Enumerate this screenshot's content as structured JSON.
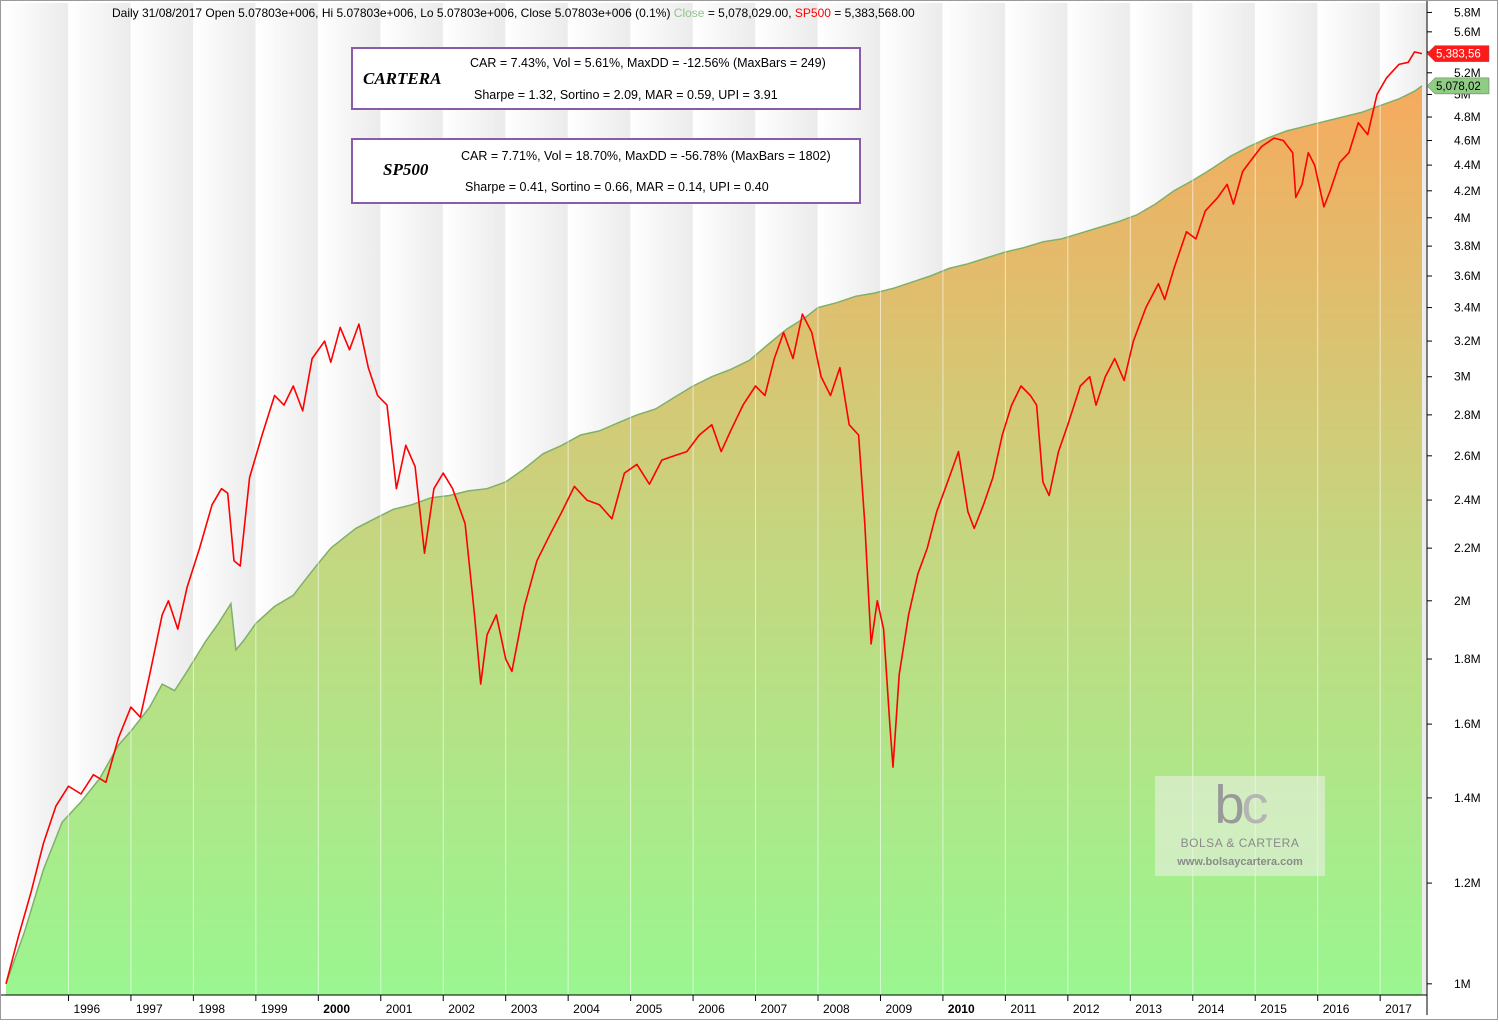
{
  "header": {
    "prefix": "Daily 31/08/2017 Open 5.07803e+006, Hi 5.07803e+006, Lo 5.07803e+006, Close 5.07803e+006 (0.1%)",
    "close_label": "Close",
    "close_value": " = 5,078,029.00, ",
    "sp_label": "SP500",
    "sp_value": " = 5,383,568.00"
  },
  "boxes": {
    "cartera": {
      "name": "CARTERA",
      "line1": "CAR = 7.43%, Vol = 5.61%, MaxDD = -12.56% (MaxBars = 249)",
      "line2": "Sharpe = 1.32, Sortino = 2.09, MAR = 0.59, UPI = 3.91"
    },
    "sp500": {
      "name": "SP500",
      "line1": "CAR = 7.71%, Vol = 18.70%, MaxDD = -56.78% (MaxBars = 1802)",
      "line2": "Sharpe = 0.41, Sortino = 0.66, MAR = 0.14, UPI = 0.40"
    }
  },
  "watermark": {
    "logo_b": "b",
    "logo_c": "c",
    "name": "BOLSA & CARTERA",
    "url": "www.bolsaycartera.com"
  },
  "chart_data": {
    "type": "line",
    "scale": "log",
    "x_unit": "year",
    "ylim": [
      980000,
      5900000
    ],
    "xlim": [
      1995.0,
      2017.75
    ],
    "y_ticks": [
      1000000,
      1200000,
      1400000,
      1600000,
      1800000,
      2000000,
      2200000,
      2400000,
      2600000,
      2800000,
      3000000,
      3200000,
      3400000,
      3600000,
      3800000,
      4000000,
      4200000,
      4400000,
      4600000,
      4800000,
      5000000,
      5200000,
      5400000,
      5600000,
      5800000
    ],
    "y_tick_labels": [
      "1M",
      "1.2M",
      "1.4M",
      "1.6M",
      "1.8M",
      "2M",
      "2.2M",
      "2.4M",
      "2.6M",
      "2.8M",
      "3M",
      "3.2M",
      "3.4M",
      "3.6M",
      "3.8M",
      "4M",
      "4.2M",
      "4.4M",
      "4.6M",
      "4.8M",
      "5M",
      "5.2M",
      "5.4M",
      "5.6M",
      "5.8M"
    ],
    "x_labels": [
      {
        "year": 1996,
        "label": "1996",
        "bold": false
      },
      {
        "year": 1997,
        "label": "1997",
        "bold": false
      },
      {
        "year": 1998,
        "label": "1998",
        "bold": false
      },
      {
        "year": 1999,
        "label": "1999",
        "bold": false
      },
      {
        "year": 2000,
        "label": "2000",
        "bold": true
      },
      {
        "year": 2001,
        "label": "2001",
        "bold": false
      },
      {
        "year": 2002,
        "label": "2002",
        "bold": false
      },
      {
        "year": 2003,
        "label": "2003",
        "bold": false
      },
      {
        "year": 2004,
        "label": "2004",
        "bold": false
      },
      {
        "year": 2005,
        "label": "2005",
        "bold": false
      },
      {
        "year": 2006,
        "label": "2006",
        "bold": false
      },
      {
        "year": 2007,
        "label": "2007",
        "bold": false
      },
      {
        "year": 2008,
        "label": "2008",
        "bold": false
      },
      {
        "year": 2009,
        "label": "2009",
        "bold": false
      },
      {
        "year": 2010,
        "label": "2010",
        "bold": true
      },
      {
        "year": 2011,
        "label": "2011",
        "bold": false
      },
      {
        "year": 2012,
        "label": "2012",
        "bold": false
      },
      {
        "year": 2013,
        "label": "2013",
        "bold": false
      },
      {
        "year": 2014,
        "label": "2014",
        "bold": false
      },
      {
        "year": 2015,
        "label": "2015",
        "bold": false
      },
      {
        "year": 2016,
        "label": "2016",
        "bold": false
      },
      {
        "year": 2017,
        "label": "2017",
        "bold": false
      }
    ],
    "series": [
      {
        "name": "Close",
        "style": "area",
        "color": "#7fb06a",
        "points": [
          [
            1995.0,
            1000000
          ],
          [
            1995.3,
            1100000
          ],
          [
            1995.6,
            1230000
          ],
          [
            1995.9,
            1340000
          ],
          [
            1996.2,
            1390000
          ],
          [
            1996.5,
            1450000
          ],
          [
            1996.8,
            1540000
          ],
          [
            1997.0,
            1580000
          ],
          [
            1997.3,
            1650000
          ],
          [
            1997.5,
            1720000
          ],
          [
            1997.7,
            1700000
          ],
          [
            1997.9,
            1760000
          ],
          [
            1998.2,
            1860000
          ],
          [
            1998.4,
            1920000
          ],
          [
            1998.6,
            1990000
          ],
          [
            1998.68,
            1830000
          ],
          [
            1998.8,
            1860000
          ],
          [
            1999.0,
            1920000
          ],
          [
            1999.3,
            1980000
          ],
          [
            1999.6,
            2020000
          ],
          [
            1999.8,
            2080000
          ],
          [
            2000.0,
            2140000
          ],
          [
            2000.2,
            2200000
          ],
          [
            2000.4,
            2240000
          ],
          [
            2000.6,
            2280000
          ],
          [
            2000.9,
            2320000
          ],
          [
            2001.2,
            2360000
          ],
          [
            2001.5,
            2380000
          ],
          [
            2001.8,
            2410000
          ],
          [
            2002.1,
            2420000
          ],
          [
            2002.4,
            2440000
          ],
          [
            2002.7,
            2450000
          ],
          [
            2003.0,
            2480000
          ],
          [
            2003.3,
            2540000
          ],
          [
            2003.6,
            2610000
          ],
          [
            2003.9,
            2650000
          ],
          [
            2004.2,
            2700000
          ],
          [
            2004.5,
            2720000
          ],
          [
            2004.8,
            2760000
          ],
          [
            2005.1,
            2800000
          ],
          [
            2005.4,
            2830000
          ],
          [
            2005.7,
            2890000
          ],
          [
            2006.0,
            2950000
          ],
          [
            2006.3,
            3000000
          ],
          [
            2006.6,
            3040000
          ],
          [
            2006.9,
            3090000
          ],
          [
            2007.2,
            3180000
          ],
          [
            2007.5,
            3270000
          ],
          [
            2007.8,
            3340000
          ],
          [
            2008.0,
            3400000
          ],
          [
            2008.3,
            3430000
          ],
          [
            2008.6,
            3470000
          ],
          [
            2008.9,
            3490000
          ],
          [
            2009.2,
            3520000
          ],
          [
            2009.5,
            3560000
          ],
          [
            2009.8,
            3600000
          ],
          [
            2010.1,
            3650000
          ],
          [
            2010.4,
            3680000
          ],
          [
            2010.7,
            3720000
          ],
          [
            2011.0,
            3760000
          ],
          [
            2011.3,
            3790000
          ],
          [
            2011.6,
            3830000
          ],
          [
            2011.9,
            3850000
          ],
          [
            2012.2,
            3890000
          ],
          [
            2012.5,
            3930000
          ],
          [
            2012.8,
            3970000
          ],
          [
            2013.1,
            4020000
          ],
          [
            2013.4,
            4100000
          ],
          [
            2013.7,
            4200000
          ],
          [
            2014.0,
            4280000
          ],
          [
            2014.3,
            4370000
          ],
          [
            2014.6,
            4470000
          ],
          [
            2014.9,
            4550000
          ],
          [
            2015.2,
            4620000
          ],
          [
            2015.5,
            4680000
          ],
          [
            2015.8,
            4720000
          ],
          [
            2016.1,
            4760000
          ],
          [
            2016.4,
            4800000
          ],
          [
            2016.7,
            4840000
          ],
          [
            2017.0,
            4900000
          ],
          [
            2017.3,
            4960000
          ],
          [
            2017.55,
            5030000
          ],
          [
            2017.67,
            5078029
          ]
        ]
      },
      {
        "name": "SP500",
        "style": "line",
        "color": "#ff0000",
        "points": [
          [
            1995.0,
            1000000
          ],
          [
            1995.2,
            1090000
          ],
          [
            1995.4,
            1180000
          ],
          [
            1995.6,
            1290000
          ],
          [
            1995.8,
            1380000
          ],
          [
            1996.0,
            1430000
          ],
          [
            1996.2,
            1410000
          ],
          [
            1996.4,
            1460000
          ],
          [
            1996.6,
            1440000
          ],
          [
            1996.8,
            1560000
          ],
          [
            1997.0,
            1650000
          ],
          [
            1997.15,
            1620000
          ],
          [
            1997.3,
            1750000
          ],
          [
            1997.5,
            1950000
          ],
          [
            1997.6,
            2000000
          ],
          [
            1997.75,
            1900000
          ],
          [
            1997.9,
            2050000
          ],
          [
            1998.1,
            2200000
          ],
          [
            1998.3,
            2380000
          ],
          [
            1998.45,
            2450000
          ],
          [
            1998.55,
            2430000
          ],
          [
            1998.65,
            2150000
          ],
          [
            1998.75,
            2130000
          ],
          [
            1998.9,
            2500000
          ],
          [
            1999.1,
            2700000
          ],
          [
            1999.3,
            2900000
          ],
          [
            1999.45,
            2850000
          ],
          [
            1999.6,
            2950000
          ],
          [
            1999.75,
            2820000
          ],
          [
            1999.9,
            3100000
          ],
          [
            2000.1,
            3200000
          ],
          [
            2000.2,
            3080000
          ],
          [
            2000.35,
            3280000
          ],
          [
            2000.5,
            3150000
          ],
          [
            2000.65,
            3300000
          ],
          [
            2000.8,
            3050000
          ],
          [
            2000.95,
            2900000
          ],
          [
            2001.1,
            2850000
          ],
          [
            2001.25,
            2450000
          ],
          [
            2001.4,
            2650000
          ],
          [
            2001.55,
            2550000
          ],
          [
            2001.7,
            2180000
          ],
          [
            2001.85,
            2450000
          ],
          [
            2002.0,
            2520000
          ],
          [
            2002.15,
            2450000
          ],
          [
            2002.35,
            2300000
          ],
          [
            2002.5,
            1950000
          ],
          [
            2002.6,
            1720000
          ],
          [
            2002.7,
            1880000
          ],
          [
            2002.85,
            1950000
          ],
          [
            2003.0,
            1800000
          ],
          [
            2003.1,
            1760000
          ],
          [
            2003.3,
            1980000
          ],
          [
            2003.5,
            2150000
          ],
          [
            2003.7,
            2250000
          ],
          [
            2003.9,
            2350000
          ],
          [
            2004.1,
            2460000
          ],
          [
            2004.3,
            2400000
          ],
          [
            2004.5,
            2380000
          ],
          [
            2004.7,
            2320000
          ],
          [
            2004.9,
            2520000
          ],
          [
            2005.1,
            2560000
          ],
          [
            2005.3,
            2470000
          ],
          [
            2005.5,
            2580000
          ],
          [
            2005.7,
            2600000
          ],
          [
            2005.9,
            2620000
          ],
          [
            2006.1,
            2700000
          ],
          [
            2006.3,
            2750000
          ],
          [
            2006.45,
            2620000
          ],
          [
            2006.6,
            2720000
          ],
          [
            2006.8,
            2850000
          ],
          [
            2007.0,
            2950000
          ],
          [
            2007.15,
            2900000
          ],
          [
            2007.3,
            3100000
          ],
          [
            2007.45,
            3250000
          ],
          [
            2007.6,
            3100000
          ],
          [
            2007.75,
            3360000
          ],
          [
            2007.9,
            3250000
          ],
          [
            2008.05,
            3000000
          ],
          [
            2008.2,
            2900000
          ],
          [
            2008.35,
            3050000
          ],
          [
            2008.5,
            2750000
          ],
          [
            2008.65,
            2700000
          ],
          [
            2008.75,
            2300000
          ],
          [
            2008.85,
            1850000
          ],
          [
            2008.95,
            2000000
          ],
          [
            2009.05,
            1900000
          ],
          [
            2009.15,
            1600000
          ],
          [
            2009.2,
            1480000
          ],
          [
            2009.3,
            1750000
          ],
          [
            2009.45,
            1950000
          ],
          [
            2009.6,
            2100000
          ],
          [
            2009.75,
            2200000
          ],
          [
            2009.9,
            2350000
          ],
          [
            2010.1,
            2500000
          ],
          [
            2010.25,
            2620000
          ],
          [
            2010.4,
            2350000
          ],
          [
            2010.5,
            2280000
          ],
          [
            2010.65,
            2380000
          ],
          [
            2010.8,
            2500000
          ],
          [
            2010.95,
            2700000
          ],
          [
            2011.1,
            2850000
          ],
          [
            2011.25,
            2950000
          ],
          [
            2011.4,
            2900000
          ],
          [
            2011.5,
            2850000
          ],
          [
            2011.6,
            2480000
          ],
          [
            2011.7,
            2420000
          ],
          [
            2011.85,
            2620000
          ],
          [
            2012.0,
            2750000
          ],
          [
            2012.2,
            2950000
          ],
          [
            2012.35,
            3000000
          ],
          [
            2012.45,
            2850000
          ],
          [
            2012.6,
            3000000
          ],
          [
            2012.75,
            3100000
          ],
          [
            2012.9,
            2980000
          ],
          [
            2013.05,
            3200000
          ],
          [
            2013.25,
            3400000
          ],
          [
            2013.45,
            3550000
          ],
          [
            2013.55,
            3450000
          ],
          [
            2013.7,
            3650000
          ],
          [
            2013.9,
            3900000
          ],
          [
            2014.05,
            3850000
          ],
          [
            2014.2,
            4050000
          ],
          [
            2014.4,
            4150000
          ],
          [
            2014.55,
            4250000
          ],
          [
            2014.65,
            4100000
          ],
          [
            2014.8,
            4350000
          ],
          [
            2014.95,
            4450000
          ],
          [
            2015.1,
            4550000
          ],
          [
            2015.3,
            4620000
          ],
          [
            2015.45,
            4600000
          ],
          [
            2015.6,
            4500000
          ],
          [
            2015.65,
            4150000
          ],
          [
            2015.75,
            4250000
          ],
          [
            2015.85,
            4500000
          ],
          [
            2015.95,
            4400000
          ],
          [
            2016.1,
            4080000
          ],
          [
            2016.2,
            4200000
          ],
          [
            2016.35,
            4420000
          ],
          [
            2016.5,
            4500000
          ],
          [
            2016.65,
            4750000
          ],
          [
            2016.8,
            4650000
          ],
          [
            2016.95,
            5000000
          ],
          [
            2017.1,
            5150000
          ],
          [
            2017.3,
            5280000
          ],
          [
            2017.45,
            5300000
          ],
          [
            2017.55,
            5400000
          ],
          [
            2017.67,
            5383568
          ]
        ]
      }
    ],
    "last_values": [
      {
        "label": "5,383,56",
        "value": 5383568,
        "bg": "#ff1a1a",
        "fg": "#ffffff"
      },
      {
        "label": "5,078,02",
        "value": 5078029,
        "bg": "#8fcc84",
        "fg": "#000000"
      }
    ]
  }
}
